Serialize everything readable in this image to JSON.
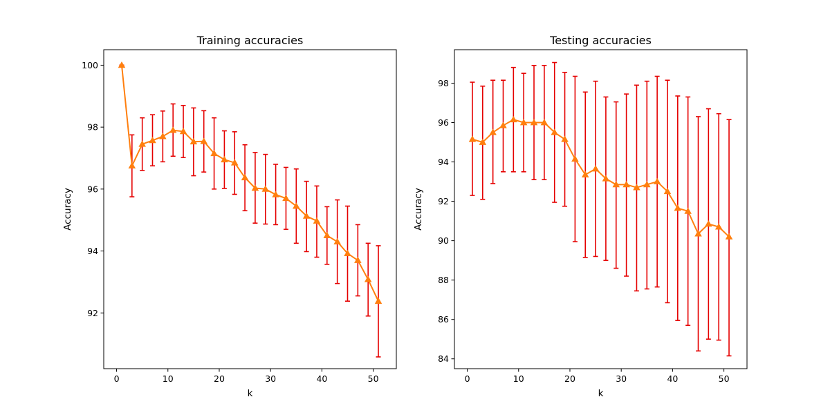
{
  "colors": {
    "line": "#ff7f0e",
    "errorbar": "#e50000",
    "axis": "#000000",
    "background": "#ffffff"
  },
  "chart_data": [
    {
      "type": "line",
      "title": "Training accuracies",
      "xlabel": "k",
      "ylabel": "Accuracy",
      "xlim": [
        -2.5,
        54.5
      ],
      "ylim": [
        90.2,
        100.5
      ],
      "xticks": [
        0,
        10,
        20,
        30,
        40,
        50
      ],
      "yticks": [
        92,
        94,
        96,
        98,
        100
      ],
      "grid": false,
      "marker": "triangle",
      "series": [
        {
          "x": [
            1,
            3,
            5,
            7,
            9,
            11,
            13,
            15,
            17,
            19,
            21,
            23,
            25,
            27,
            29,
            31,
            33,
            35,
            37,
            39,
            41,
            43,
            45,
            47,
            49,
            51
          ],
          "values": [
            100.0,
            96.75,
            97.45,
            97.57,
            97.7,
            97.9,
            97.86,
            97.53,
            97.54,
            97.15,
            96.95,
            96.85,
            96.37,
            96.03,
            96.0,
            95.82,
            95.7,
            95.45,
            95.13,
            94.97,
            94.5,
            94.3,
            93.92,
            93.7,
            93.08,
            92.38
          ],
          "error_low": [
            100.0,
            95.75,
            96.6,
            96.75,
            96.88,
            97.06,
            97.02,
            96.43,
            96.55,
            96.0,
            96.02,
            95.83,
            95.3,
            94.9,
            94.87,
            94.85,
            94.7,
            94.25,
            93.98,
            93.8,
            93.57,
            92.95,
            92.38,
            92.55,
            91.9,
            90.58
          ],
          "error_high": [
            100.0,
            97.75,
            98.3,
            98.4,
            98.52,
            98.75,
            98.7,
            98.62,
            98.53,
            98.3,
            97.88,
            97.85,
            97.43,
            97.18,
            97.12,
            96.8,
            96.7,
            96.65,
            96.25,
            96.1,
            95.43,
            95.65,
            95.45,
            94.85,
            94.25,
            94.17
          ]
        }
      ]
    },
    {
      "type": "line",
      "title": "Testing accuracies",
      "xlabel": "k",
      "ylabel": "Accuracy",
      "xlim": [
        -2.5,
        54.5
      ],
      "ylim": [
        83.5,
        99.7
      ],
      "xticks": [
        0,
        10,
        20,
        30,
        40,
        50
      ],
      "yticks": [
        84,
        86,
        88,
        90,
        92,
        94,
        96,
        98
      ],
      "grid": false,
      "marker": "triangle",
      "series": [
        {
          "x": [
            1,
            3,
            5,
            7,
            9,
            11,
            13,
            15,
            17,
            19,
            21,
            23,
            25,
            27,
            29,
            31,
            33,
            35,
            37,
            39,
            41,
            43,
            45,
            47,
            49,
            51
          ],
          "values": [
            95.15,
            95.0,
            95.5,
            95.85,
            96.15,
            96.0,
            96.0,
            96.0,
            95.5,
            95.15,
            94.15,
            93.35,
            93.65,
            93.15,
            92.85,
            92.85,
            92.7,
            92.85,
            93.0,
            92.5,
            91.65,
            91.5,
            90.35,
            90.85,
            90.7,
            90.2
          ],
          "error_low": [
            92.3,
            92.1,
            92.9,
            93.5,
            93.5,
            93.5,
            93.1,
            93.1,
            91.95,
            91.75,
            89.95,
            89.15,
            89.2,
            89.0,
            88.6,
            88.2,
            87.45,
            87.55,
            87.65,
            86.85,
            85.95,
            85.7,
            84.4,
            85.0,
            84.95,
            84.15
          ],
          "error_high": [
            98.05,
            97.85,
            98.15,
            98.15,
            98.8,
            98.5,
            98.9,
            98.9,
            99.05,
            98.55,
            98.35,
            97.55,
            98.1,
            97.3,
            97.05,
            97.45,
            97.9,
            98.1,
            98.35,
            98.15,
            97.35,
            97.3,
            96.3,
            96.7,
            96.45,
            96.15
          ]
        }
      ]
    }
  ]
}
